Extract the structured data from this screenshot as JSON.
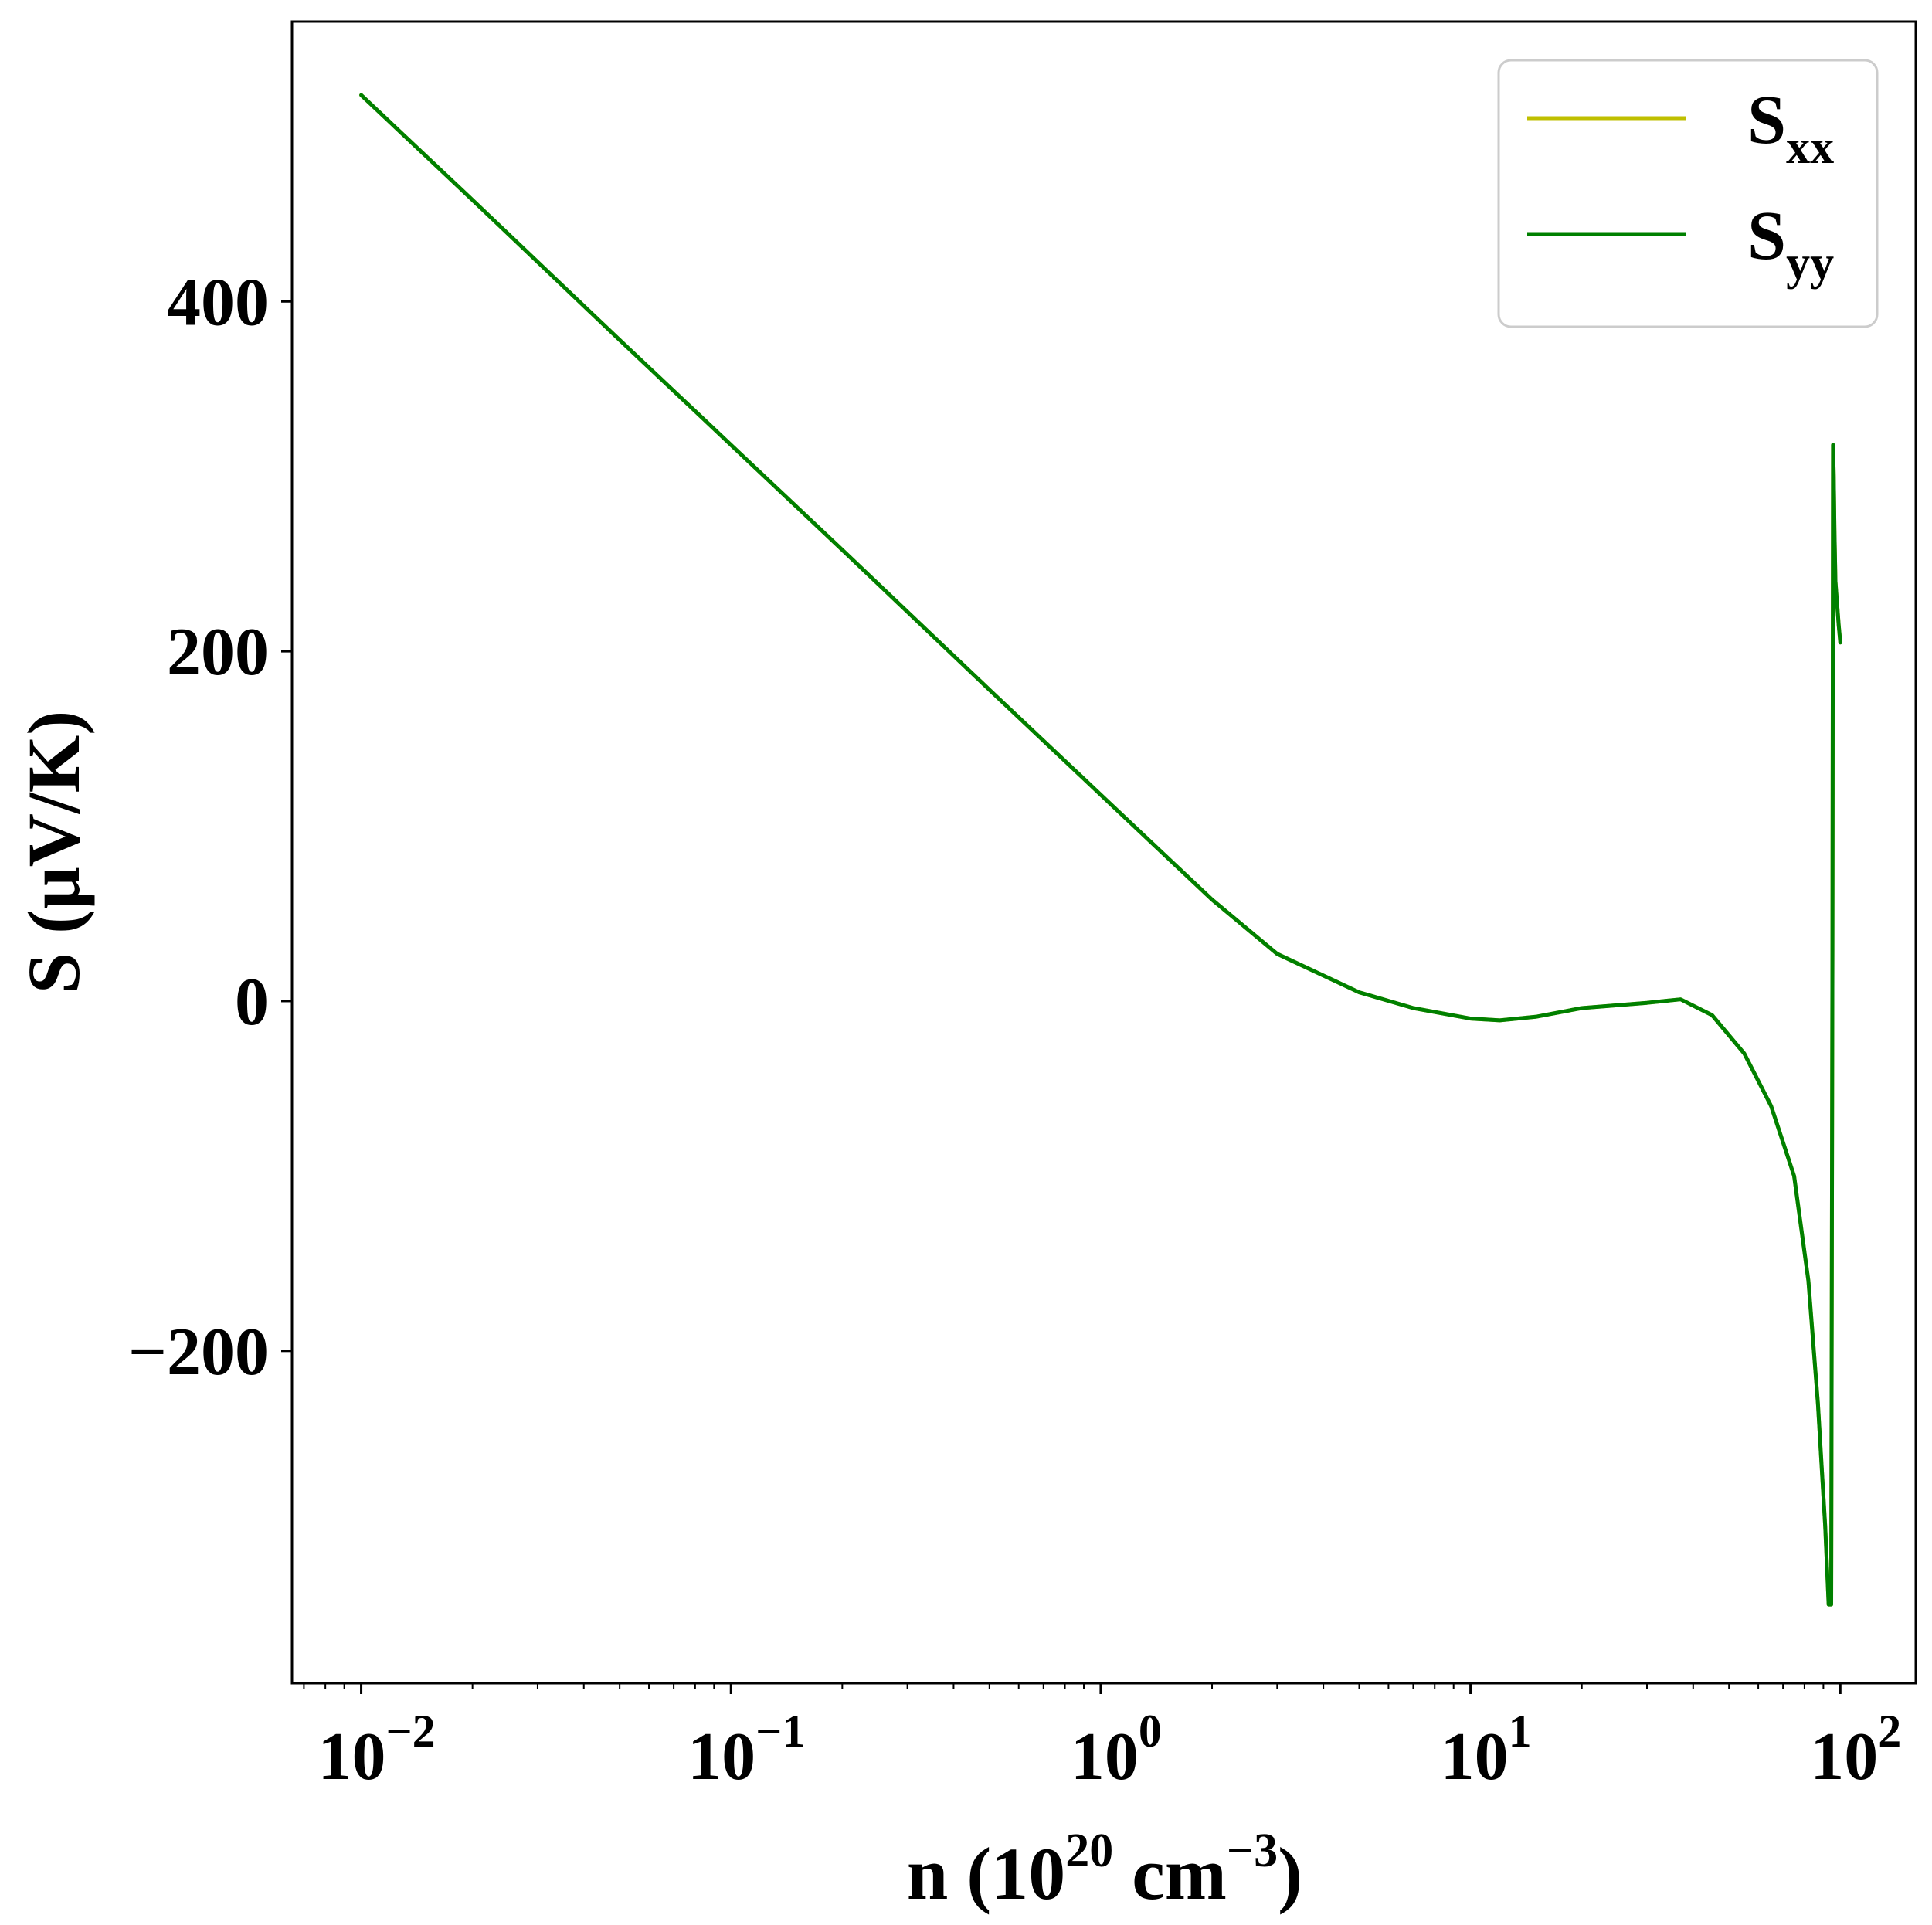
{
  "chart_data": {
    "type": "line",
    "xlabel": {
      "main": "n (10",
      "exp1": "20",
      "mid": " cm",
      "exp2": "−3",
      "end": ")"
    },
    "ylabel": "S (μV/K)",
    "xscale": "log",
    "xlim": [
      0.0065,
      160
    ],
    "ylim": [
      -390,
      560
    ],
    "grid": false,
    "legend_placement": "top-right",
    "x_tick_labels": [
      {
        "value": 0.01,
        "base": "10",
        "exp": "−2"
      },
      {
        "value": 0.1,
        "base": "10",
        "exp": "−1"
      },
      {
        "value": 1,
        "base": "10",
        "exp": "0"
      },
      {
        "value": 10,
        "base": "10",
        "exp": "1"
      },
      {
        "value": 100,
        "base": "10",
        "exp": "2"
      }
    ],
    "y_ticks": [
      {
        "value": -200,
        "label": "−200"
      },
      {
        "value": 0,
        "label": "0"
      },
      {
        "value": 200,
        "label": "200"
      },
      {
        "value": 400,
        "label": "400"
      }
    ],
    "series": [
      {
        "name": "S_xx",
        "legend_main": "S",
        "legend_sub": "xx",
        "color": "#bfbf00",
        "x": [
          0.01,
          0.02,
          0.05,
          0.1,
          0.2,
          0.5,
          1,
          2,
          3,
          5,
          7,
          10,
          12,
          15,
          20,
          30,
          37,
          45,
          55,
          65,
          75,
          82,
          87,
          91,
          93,
          94.5,
          95.2,
          95.6,
          96,
          96.4,
          97,
          99,
          100
        ],
        "y": [
          518,
          458,
          378,
          318,
          258,
          178,
          118,
          58,
          27,
          5,
          -4,
          -10,
          -11,
          -9,
          -4,
          -1,
          1,
          -8,
          -30,
          -60,
          -100,
          -160,
          -230,
          -300,
          -345,
          -345,
          30,
          318,
          300,
          270,
          240,
          215,
          205
        ]
      },
      {
        "name": "S_yy",
        "legend_main": "S",
        "legend_sub": "yy",
        "color": "#008000",
        "x": [
          0.01,
          0.02,
          0.05,
          0.1,
          0.2,
          0.5,
          1,
          2,
          3,
          5,
          7,
          10,
          12,
          15,
          20,
          30,
          37,
          45,
          55,
          65,
          75,
          82,
          87,
          91,
          93,
          94.5,
          95.2,
          95.6,
          96,
          96.4,
          97,
          99,
          100
        ],
        "y": [
          518,
          458,
          378,
          318,
          258,
          178,
          118,
          58,
          27,
          5,
          -4,
          -10,
          -11,
          -9,
          -4,
          -1,
          1,
          -8,
          -30,
          -60,
          -100,
          -160,
          -230,
          -300,
          -345,
          -345,
          30,
          318,
          300,
          270,
          240,
          215,
          205
        ]
      }
    ]
  }
}
